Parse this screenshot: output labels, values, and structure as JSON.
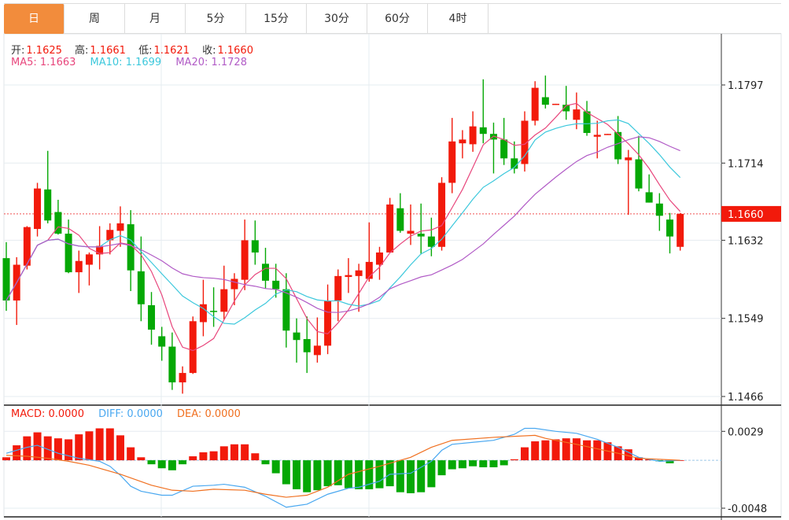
{
  "tabs": [
    {
      "label": "日",
      "active": true
    },
    {
      "label": "周"
    },
    {
      "label": "月"
    },
    {
      "label": "5分"
    },
    {
      "label": "15分"
    },
    {
      "label": "30分"
    },
    {
      "label": "60分"
    },
    {
      "label": "4时"
    }
  ],
  "ohlc_legend": {
    "open_label": "开:",
    "open": "1.1625",
    "high_label": "高:",
    "high": "1.1661",
    "low_label": "低:",
    "low": "1.1621",
    "close_label": "收:",
    "close": "1.1660"
  },
  "ma_legend": {
    "ma5": "MA5: 1.1663",
    "ma10": "MA10: 1.1699",
    "ma20": "MA20: 1.1728"
  },
  "macd_legend": {
    "macd": "MACD: 0.0000",
    "diff": "DIFF: 0.0000",
    "dea": "DEA: 0.0000"
  },
  "colors": {
    "up": "#f21a0b",
    "down": "#05a805",
    "ma5": "#e8467c",
    "ma10": "#3cc8dc",
    "ma20": "#b15bc6",
    "diff": "#4aa8f0",
    "dea": "#f07020",
    "active_tab": "#f28c3c"
  },
  "chart_data": [
    {
      "type": "candlestick",
      "title": "",
      "ylim": [
        1.1466,
        1.1797
      ],
      "yticks": [
        "1.1797",
        "1.1714",
        "1.1632",
        "1.1549",
        "1.1466"
      ],
      "last_price": "1.1660",
      "grid": true,
      "ma_periods": [
        5,
        10,
        20
      ],
      "ohlc": [
        [
          1.1613,
          1.163,
          1.1557,
          1.1568
        ],
        [
          1.1568,
          1.1614,
          1.1542,
          1.1606
        ],
        [
          1.1605,
          1.1647,
          1.1601,
          1.1646
        ],
        [
          1.1644,
          1.1693,
          1.1636,
          1.1687
        ],
        [
          1.1686,
          1.1727,
          1.165,
          1.1653
        ],
        [
          1.1662,
          1.1675,
          1.1638,
          1.1639
        ],
        [
          1.1639,
          1.1654,
          1.1597,
          1.1598
        ],
        [
          1.1598,
          1.1621,
          1.1576,
          1.161
        ],
        [
          1.1606,
          1.1619,
          1.1584,
          1.1617
        ],
        [
          1.1617,
          1.1647,
          1.1601,
          1.1626
        ],
        [
          1.1632,
          1.165,
          1.1617,
          1.1643
        ],
        [
          1.1642,
          1.1668,
          1.1625,
          1.165
        ],
        [
          1.1649,
          1.1664,
          1.1578,
          1.16
        ],
        [
          1.1599,
          1.1636,
          1.1546,
          1.1564
        ],
        [
          1.1563,
          1.1577,
          1.1521,
          1.1537
        ],
        [
          1.153,
          1.154,
          1.1504,
          1.1519
        ],
        [
          1.1519,
          1.1534,
          1.1473,
          1.1481
        ],
        [
          1.1481,
          1.1498,
          1.1469,
          1.1491
        ],
        [
          1.1491,
          1.1551,
          1.149,
          1.1546
        ],
        [
          1.1545,
          1.159,
          1.153,
          1.1564
        ],
        [
          1.1557,
          1.1582,
          1.154,
          1.1556
        ],
        [
          1.1556,
          1.1605,
          1.1548,
          1.158
        ],
        [
          1.158,
          1.1597,
          1.1563,
          1.1591
        ],
        [
          1.159,
          1.1654,
          1.1579,
          1.1632
        ],
        [
          1.1632,
          1.1653,
          1.1606,
          1.1619
        ],
        [
          1.1607,
          1.1624,
          1.1581,
          1.1589
        ],
        [
          1.1589,
          1.1607,
          1.1571,
          1.158
        ],
        [
          1.158,
          1.1597,
          1.1518,
          1.1536
        ],
        [
          1.1534,
          1.1549,
          1.1502,
          1.1526
        ],
        [
          1.1527,
          1.1551,
          1.1491,
          1.1513
        ],
        [
          1.151,
          1.155,
          1.1502,
          1.152
        ],
        [
          1.152,
          1.1585,
          1.1511,
          1.1568
        ],
        [
          1.1568,
          1.1601,
          1.1546,
          1.1594
        ],
        [
          1.1593,
          1.1613,
          1.1576,
          1.1595
        ],
        [
          1.1594,
          1.1607,
          1.1556,
          1.16
        ],
        [
          1.1591,
          1.1651,
          1.1588,
          1.1609
        ],
        [
          1.1606,
          1.1625,
          1.159,
          1.1619
        ],
        [
          1.1619,
          1.1677,
          1.1619,
          1.167
        ],
        [
          1.1666,
          1.1682,
          1.164,
          1.1642
        ],
        [
          1.1639,
          1.167,
          1.1627,
          1.1642
        ],
        [
          1.1639,
          1.1671,
          1.1617,
          1.1636
        ],
        [
          1.1636,
          1.1656,
          1.1615,
          1.1625
        ],
        [
          1.1625,
          1.1699,
          1.1621,
          1.1693
        ],
        [
          1.1693,
          1.1762,
          1.1682,
          1.1737
        ],
        [
          1.1735,
          1.1749,
          1.1719,
          1.1739
        ],
        [
          1.1734,
          1.1769,
          1.1726,
          1.1753
        ],
        [
          1.1752,
          1.1803,
          1.1735,
          1.1745
        ],
        [
          1.1745,
          1.1757,
          1.1703,
          1.1739
        ],
        [
          1.1739,
          1.1762,
          1.1712,
          1.1719
        ],
        [
          1.1719,
          1.1737,
          1.1703,
          1.1708
        ],
        [
          1.1713,
          1.1769,
          1.1705,
          1.1759
        ],
        [
          1.1759,
          1.1801,
          1.1754,
          1.1794
        ],
        [
          1.1784,
          1.1807,
          1.1772,
          1.1776
        ],
        [
          1.1776,
          1.1777,
          1.1776,
          1.1777
        ],
        [
          1.1776,
          1.1796,
          1.176,
          1.1769
        ],
        [
          1.176,
          1.1789,
          1.175,
          1.1771
        ],
        [
          1.1769,
          1.178,
          1.1743,
          1.1746
        ],
        [
          1.1742,
          1.1759,
          1.1719,
          1.1744
        ],
        [
          1.1744,
          1.1745,
          1.1744,
          1.1745
        ],
        [
          1.1747,
          1.1764,
          1.1713,
          1.1718
        ],
        [
          1.1717,
          1.1728,
          1.1659,
          1.172
        ],
        [
          1.1718,
          1.1743,
          1.1684,
          1.1687
        ],
        [
          1.1683,
          1.1702,
          1.1672,
          1.1672
        ],
        [
          1.1671,
          1.1682,
          1.1642,
          1.1658
        ],
        [
          1.1654,
          1.1661,
          1.1618,
          1.1636
        ],
        [
          1.1625,
          1.1661,
          1.1621,
          1.166
        ]
      ]
    },
    {
      "type": "bar+line",
      "title": "",
      "ylim": [
        -0.0048,
        0.0029
      ],
      "yticks": [
        "0.0029",
        "-0.0048"
      ],
      "macd": [
        0.0003,
        0.0015,
        0.0024,
        0.0028,
        0.0024,
        0.0022,
        0.0021,
        0.0026,
        0.0029,
        0.0032,
        0.0032,
        0.0025,
        0.0013,
        0.0003,
        -0.0004,
        -0.0008,
        -0.001,
        -0.0004,
        0.0004,
        0.0008,
        0.0009,
        0.0014,
        0.0016,
        0.0016,
        0.0007,
        -0.0004,
        -0.0013,
        -0.0024,
        -0.0029,
        -0.0032,
        -0.003,
        -0.0026,
        -0.0025,
        -0.0028,
        -0.0029,
        -0.0029,
        -0.0028,
        -0.0026,
        -0.0032,
        -0.0033,
        -0.0032,
        -0.0027,
        -0.0015,
        -0.0009,
        -0.0008,
        -0.0006,
        -0.0007,
        -0.0007,
        -0.0005,
        0.0001,
        0.0013,
        0.0019,
        0.002,
        0.0021,
        0.0022,
        0.0022,
        0.002,
        0.002,
        0.0018,
        0.0014,
        0.0011,
        0.0003,
        0.0001,
        -0.0001,
        -0.0003,
        0.0
      ],
      "diff_points": [
        [
          1,
          0.0007
        ],
        [
          3,
          0.0013
        ],
        [
          4,
          0.0015
        ],
        [
          6,
          0.0007
        ],
        [
          8,
          0.0002
        ],
        [
          10,
          -0.0001
        ],
        [
          11,
          -0.0006
        ],
        [
          12,
          -0.0015
        ],
        [
          13,
          -0.0026
        ],
        [
          14,
          -0.0031
        ],
        [
          16,
          -0.0035
        ],
        [
          17,
          -0.0035
        ],
        [
          19,
          -0.0026
        ],
        [
          21,
          -0.0025
        ],
        [
          22,
          -0.0024
        ],
        [
          24,
          -0.0027
        ],
        [
          26,
          -0.0036
        ],
        [
          28,
          -0.0047
        ],
        [
          30,
          -0.0044
        ],
        [
          32,
          -0.0034
        ],
        [
          34,
          -0.0028
        ],
        [
          35,
          -0.0027
        ],
        [
          37,
          -0.0021
        ],
        [
          38,
          -0.0014
        ],
        [
          40,
          -0.0013
        ],
        [
          42,
          -0.0001
        ],
        [
          43,
          0.001
        ],
        [
          44,
          0.0016
        ],
        [
          46,
          0.0018
        ],
        [
          48,
          0.002
        ],
        [
          50,
          0.0026
        ],
        [
          51,
          0.0032
        ],
        [
          52,
          0.0032
        ],
        [
          54,
          0.0029
        ],
        [
          56,
          0.0027
        ],
        [
          58,
          0.0021
        ],
        [
          60,
          0.0013
        ],
        [
          62,
          0.0003
        ],
        [
          64,
          -0.0001
        ],
        [
          66,
          0.0
        ]
      ],
      "dea_points": [
        [
          1,
          0.0005
        ],
        [
          3,
          0.0004
        ],
        [
          5,
          0.0002
        ],
        [
          7,
          -0.0001
        ],
        [
          9,
          -0.0005
        ],
        [
          12,
          -0.0014
        ],
        [
          15,
          -0.0025
        ],
        [
          17,
          -0.003
        ],
        [
          19,
          -0.0031
        ],
        [
          21,
          -0.0029
        ],
        [
          24,
          -0.003
        ],
        [
          26,
          -0.0034
        ],
        [
          28,
          -0.0037
        ],
        [
          30,
          -0.0035
        ],
        [
          32,
          -0.0027
        ],
        [
          34,
          -0.0014
        ],
        [
          37,
          -0.0006
        ],
        [
          40,
          0.0003
        ],
        [
          42,
          0.0013
        ],
        [
          44,
          0.002
        ],
        [
          48,
          0.0023
        ],
        [
          52,
          0.0025
        ],
        [
          53,
          0.0022
        ],
        [
          56,
          0.0016
        ],
        [
          60,
          0.0007
        ],
        [
          62,
          0.0002
        ],
        [
          66,
          0.0
        ]
      ]
    }
  ]
}
